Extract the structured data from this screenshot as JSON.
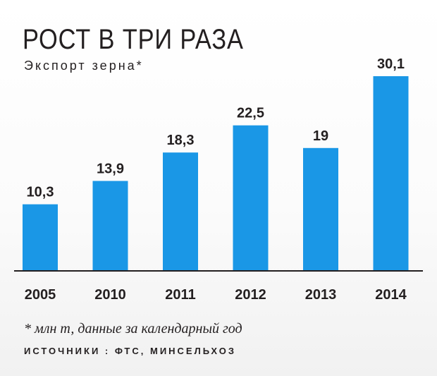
{
  "header": {
    "title": "РОСТ В ТРИ РАЗА",
    "subtitle": "Экспорт зерна*"
  },
  "footer": {
    "footnote": "* млн т, данные за календарный год",
    "sources": "ИСТОЧНИКИ : ФТС, МИНСЕЛЬХОЗ"
  },
  "colors": {
    "bar": "#1a97e6",
    "axis": "#231f20",
    "text": "#231f20"
  },
  "chart_data": {
    "type": "bar",
    "title": "РОСТ В ТРИ РАЗА",
    "subtitle": "Экспорт зерна*",
    "categories": [
      "2005",
      "2010",
      "2011",
      "2012",
      "2013",
      "2014"
    ],
    "values": [
      10.3,
      13.9,
      18.3,
      22.5,
      19,
      30.1
    ],
    "value_labels": [
      "10,3",
      "13,9",
      "18,3",
      "22,5",
      "19",
      "30,1"
    ],
    "xlabel": "",
    "ylabel": "",
    "ylim": [
      0,
      30.1
    ],
    "grid": false,
    "legend": "none"
  }
}
